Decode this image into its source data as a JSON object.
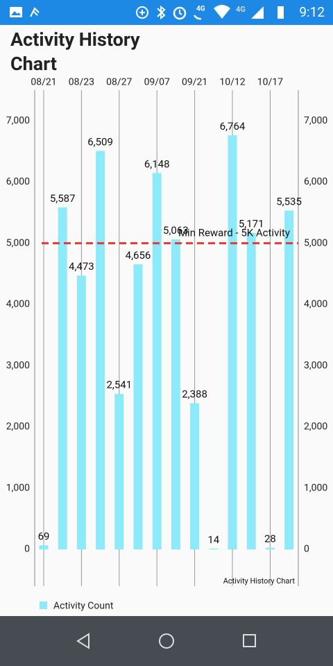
{
  "status_bar": {
    "time": "9:12",
    "network": "4G"
  },
  "chart_data": {
    "type": "bar",
    "title": "Activity History Chart",
    "categories": [
      "08/21",
      null,
      "08/23",
      null,
      "08/27",
      null,
      "09/07",
      null,
      "09/21",
      null,
      "10/12",
      null,
      "10/17",
      null
    ],
    "series": [
      {
        "name": "Activity Count",
        "color": "#8ceafb",
        "values": [
          69,
          5587,
          4473,
          6509,
          2541,
          4656,
          6148,
          5063,
          2388,
          14,
          6764,
          5171,
          28,
          5535
        ],
        "value_labels": [
          "69",
          "5,587",
          "4,473",
          "6,509",
          "2,541",
          "4,656",
          "6,148",
          "5,063",
          "2,388",
          "14",
          "6,764",
          "5,171",
          "28",
          "5,535"
        ]
      }
    ],
    "ylim": [
      -600,
      7500
    ],
    "yticks": [
      {
        "value": 0,
        "label": "0"
      },
      {
        "value": 1000,
        "label": "1,000"
      },
      {
        "value": 2000,
        "label": "2,000"
      },
      {
        "value": 3000,
        "label": "3,000"
      },
      {
        "value": 4000,
        "label": "4,000"
      },
      {
        "value": 5000,
        "label": "5,000"
      },
      {
        "value": 6000,
        "label": "6,000"
      },
      {
        "value": 7000,
        "label": "7,000"
      }
    ],
    "limit_line": {
      "value": 5000,
      "label": "Min Reward - 5K Activity",
      "color": "#e53935"
    },
    "description": "Activity History Chart",
    "legend": "bottom-left"
  }
}
